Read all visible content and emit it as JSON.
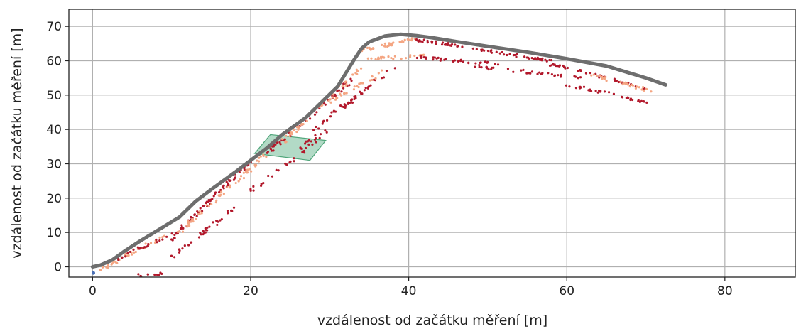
{
  "chart_data": {
    "type": "scatter",
    "xlabel": "vzdálenost od začátku měření [m]",
    "ylabel": "vzdálenost od začátku měření [m]",
    "xlim": [
      -3,
      89
    ],
    "ylim": [
      -3,
      75
    ],
    "x_ticks": [
      0,
      20,
      40,
      60,
      80
    ],
    "y_ticks": [
      0,
      10,
      20,
      30,
      40,
      50,
      60,
      70
    ],
    "grid": true,
    "legend": "none",
    "colors": {
      "path": "#6e6e6e",
      "points_dark": "#b2182b",
      "points_light": "#f4a582",
      "region_fill": "#7fc2a0",
      "region_stroke": "#4fa57a",
      "grid": "#b0b0b0",
      "start_marker": "#4a6fb5"
    },
    "trajectory": [
      [
        0,
        0
      ],
      [
        1,
        0.5
      ],
      [
        2.5,
        2
      ],
      [
        4,
        4.5
      ],
      [
        6,
        7.5
      ],
      [
        8.5,
        11
      ],
      [
        11,
        14.5
      ],
      [
        13,
        19
      ],
      [
        15,
        22.5
      ],
      [
        18,
        27.5
      ],
      [
        20,
        31
      ],
      [
        22,
        34.5
      ],
      [
        24,
        38.5
      ],
      [
        27,
        43.5
      ],
      [
        29,
        48
      ],
      [
        31,
        52.5
      ],
      [
        33,
        60
      ],
      [
        34,
        63.5
      ],
      [
        35,
        65.5
      ],
      [
        37,
        67.2
      ],
      [
        39,
        67.7
      ],
      [
        41,
        67.3
      ],
      [
        43,
        66.7
      ],
      [
        46,
        65.6
      ],
      [
        50,
        64.2
      ],
      [
        55,
        62.5
      ],
      [
        60,
        60.6
      ],
      [
        65,
        58.5
      ],
      [
        70,
        55
      ],
      [
        72.5,
        53
      ]
    ],
    "region": [
      [
        22.5,
        38.5
      ],
      [
        29.5,
        36.8
      ],
      [
        27.5,
        31
      ],
      [
        20.5,
        33
      ]
    ],
    "point_clusters": [
      {
        "from": [
          1,
          -1
        ],
        "to": [
          9,
          9
        ],
        "count": 40,
        "shade": "light"
      },
      {
        "from": [
          3,
          2
        ],
        "to": [
          10,
          9.5
        ],
        "count": 25,
        "shade": "dark"
      },
      {
        "from": [
          10,
          8
        ],
        "to": [
          20,
          31
        ],
        "count": 80,
        "shade": "dark"
      },
      {
        "from": [
          11,
          10
        ],
        "to": [
          22,
          33
        ],
        "count": 60,
        "shade": "light"
      },
      {
        "from": [
          6,
          -2.5
        ],
        "to": [
          9,
          -2
        ],
        "count": 10,
        "shade": "dark"
      },
      {
        "from": [
          10,
          3
        ],
        "to": [
          18,
          17
        ],
        "count": 35,
        "shade": "dark"
      },
      {
        "from": [
          20,
          22
        ],
        "to": [
          30,
          40
        ],
        "count": 30,
        "shade": "dark"
      },
      {
        "from": [
          22,
          33
        ],
        "to": [
          33,
          55
        ],
        "count": 60,
        "shade": "dark"
      },
      {
        "from": [
          24,
          36
        ],
        "to": [
          34,
          58
        ],
        "count": 40,
        "shade": "light"
      },
      {
        "from": [
          26,
          33
        ],
        "to": [
          28,
          38
        ],
        "count": 12,
        "shade": "dark"
      },
      {
        "from": [
          28,
          40
        ],
        "to": [
          38,
          58
        ],
        "count": 45,
        "shade": "dark"
      },
      {
        "from": [
          30,
          48
        ],
        "to": [
          37,
          57
        ],
        "count": 25,
        "shade": "light"
      },
      {
        "from": [
          34,
          63
        ],
        "to": [
          41,
          66.5
        ],
        "count": 40,
        "shade": "light"
      },
      {
        "from": [
          35,
          60.5
        ],
        "to": [
          42,
          61.5
        ],
        "count": 25,
        "shade": "light"
      },
      {
        "from": [
          41,
          66
        ],
        "to": [
          47,
          64
        ],
        "count": 30,
        "shade": "dark"
      },
      {
        "from": [
          41,
          61
        ],
        "to": [
          52,
          59
        ],
        "count": 35,
        "shade": "dark"
      },
      {
        "from": [
          48,
          63.5
        ],
        "to": [
          58,
          60
        ],
        "count": 40,
        "shade": "dark"
      },
      {
        "from": [
          48,
          58.5
        ],
        "to": [
          62,
          55
        ],
        "count": 35,
        "shade": "dark"
      },
      {
        "from": [
          58,
          59
        ],
        "to": [
          70,
          52
        ],
        "count": 50,
        "shade": "dark"
      },
      {
        "from": [
          60,
          53
        ],
        "to": [
          70,
          48
        ],
        "count": 35,
        "shade": "dark"
      },
      {
        "from": [
          63,
          56
        ],
        "to": [
          71,
          51
        ],
        "count": 30,
        "shade": "light"
      }
    ]
  }
}
